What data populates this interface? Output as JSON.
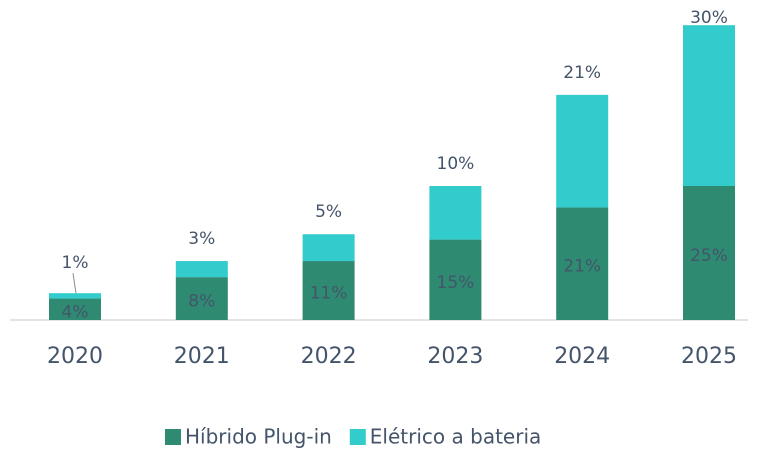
{
  "chart_data": {
    "type": "stacked_bar",
    "categories": [
      "2020",
      "2021",
      "2022",
      "2023",
      "2024",
      "2025"
    ],
    "series": [
      {
        "name": "Híbrido Plug-in",
        "color": "#2e8b72",
        "values": [
          4,
          8,
          11,
          15,
          21,
          25
        ],
        "value_labels": [
          "4%",
          "8%",
          "11%",
          "15%",
          "21%",
          "25%"
        ]
      },
      {
        "name": "Elétrico a bateria",
        "color": "#33cccc",
        "values": [
          1,
          3,
          5,
          10,
          21,
          30
        ],
        "value_labels": [
          "1%",
          "3%",
          "5%",
          "10%",
          "21%",
          "30%"
        ]
      }
    ],
    "legend": "bottom"
  }
}
